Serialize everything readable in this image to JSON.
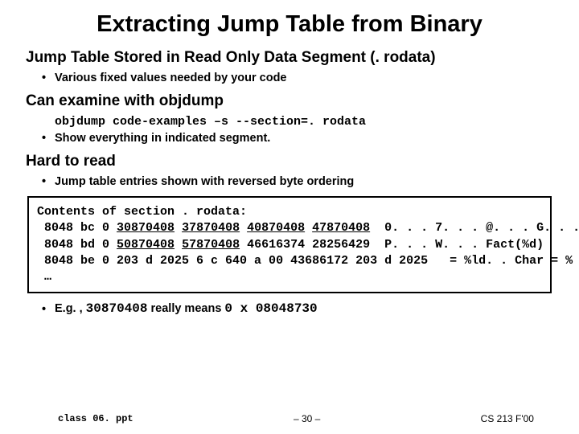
{
  "title": "Extracting Jump Table from Binary",
  "sec1": {
    "heading": "Jump Table Stored in Read Only Data Segment (. rodata)",
    "bullet": "Various fixed values needed by your code"
  },
  "sec2": {
    "heading": "Can examine with objdump",
    "cmd": "objdump code-examples –s --section=. rodata",
    "bullet": "Show everything in indicated segment."
  },
  "sec3": {
    "heading": "Hard to read",
    "bullet": "Jump table entries shown with reversed byte ordering"
  },
  "code": {
    "line1": "Contents of section . rodata:",
    "r1_addr": " 8048 bc 0 ",
    "r1_a": "30870408",
    "r1_b": "37870408",
    "r1_c": "40870408",
    "r1_d": "47870408",
    "r1_txt": "  0. . . 7. . . @. . . G. . .",
    "r2_addr": " 8048 bd 0 ",
    "r2_a": "50870408",
    "r2_b": "57870408",
    "r2_c": "46616374 28256429",
    "r2_txt": "  P. . . W. . . Fact(%d)",
    "r3_addr": " 8048 be 0 ",
    "r3_rest": "203 d 2025 6 c 640 a 00 43686172 203 d 2025",
    "r3_txt": "   = %ld. . Char = %",
    "ell": " …"
  },
  "eg": {
    "pre": "E.g. , ",
    "code1": "30870408",
    "mid": " really means ",
    "code2": "0 x 08048730"
  },
  "footer": {
    "left": "class 06. ppt",
    "mid": "– 30 –",
    "right": "CS 213 F'00"
  }
}
